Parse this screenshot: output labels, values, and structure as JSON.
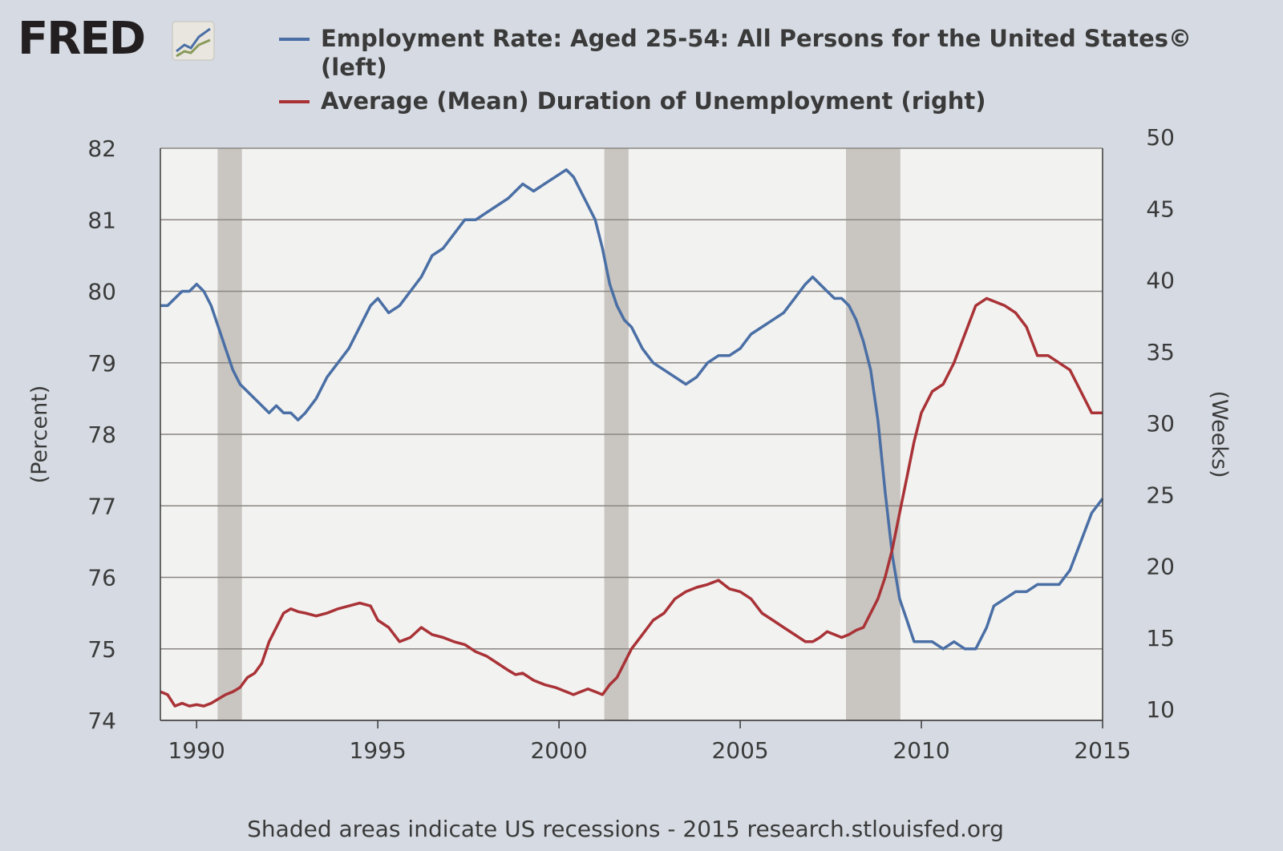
{
  "logo": {
    "text": "FRED",
    "icon": "fred-graph-icon"
  },
  "chart_data": {
    "type": "line",
    "title": "",
    "xlabel": "",
    "ylabel_left": "(Percent)",
    "ylabel_right": "(Weeks)",
    "xlim": [
      1989.0,
      2015.0
    ],
    "ylim_left": [
      74,
      82
    ],
    "ylim_right": [
      10,
      50
    ],
    "xticks": [
      1990,
      1995,
      2000,
      2005,
      2010,
      2015
    ],
    "yticks_left": [
      74,
      75,
      76,
      77,
      78,
      79,
      80,
      81,
      82
    ],
    "yticks_right": [
      10,
      15,
      20,
      25,
      30,
      35,
      40,
      45,
      50
    ],
    "grid": true,
    "recessions": [
      [
        1990.58,
        1991.25
      ],
      [
        2001.25,
        2001.92
      ],
      [
        2007.92,
        2009.42
      ]
    ],
    "series": [
      {
        "name": "Employment Rate: Aged 25-54: All Persons for the United States©",
        "axis_note": "(left)",
        "axis": "left",
        "color": "#4a6fa5",
        "x": [
          1989.0,
          1989.2,
          1989.4,
          1989.6,
          1989.8,
          1990.0,
          1990.2,
          1990.4,
          1990.6,
          1990.8,
          1991.0,
          1991.2,
          1991.4,
          1991.6,
          1991.8,
          1992.0,
          1992.2,
          1992.4,
          1992.6,
          1992.8,
          1993.0,
          1993.3,
          1993.6,
          1993.9,
          1994.2,
          1994.5,
          1994.8,
          1995.0,
          1995.3,
          1995.6,
          1995.9,
          1996.2,
          1996.5,
          1996.8,
          1997.1,
          1997.4,
          1997.7,
          1998.0,
          1998.3,
          1998.6,
          1998.8,
          1999.0,
          1999.3,
          1999.6,
          1999.9,
          2000.2,
          2000.4,
          2000.6,
          2000.8,
          2001.0,
          2001.2,
          2001.4,
          2001.6,
          2001.8,
          2002.0,
          2002.3,
          2002.6,
          2002.9,
          2003.2,
          2003.5,
          2003.8,
          2004.1,
          2004.4,
          2004.7,
          2005.0,
          2005.3,
          2005.6,
          2005.9,
          2006.2,
          2006.5,
          2006.8,
          2007.0,
          2007.2,
          2007.4,
          2007.6,
          2007.8,
          2008.0,
          2008.2,
          2008.4,
          2008.6,
          2008.8,
          2009.0,
          2009.2,
          2009.4,
          2009.6,
          2009.8,
          2010.0,
          2010.3,
          2010.6,
          2010.9,
          2011.2,
          2011.5,
          2011.8,
          2012.0,
          2012.3,
          2012.6,
          2012.9,
          2013.2,
          2013.5,
          2013.8,
          2014.1,
          2014.4,
          2014.7,
          2015.0
        ],
        "values": [
          79.8,
          79.8,
          79.9,
          80.0,
          80.0,
          80.1,
          80.0,
          79.8,
          79.5,
          79.2,
          78.9,
          78.7,
          78.6,
          78.5,
          78.4,
          78.3,
          78.4,
          78.3,
          78.3,
          78.2,
          78.3,
          78.5,
          78.8,
          79.0,
          79.2,
          79.5,
          79.8,
          79.9,
          79.7,
          79.8,
          80.0,
          80.2,
          80.5,
          80.6,
          80.8,
          81.0,
          81.0,
          81.1,
          81.2,
          81.3,
          81.4,
          81.5,
          81.4,
          81.5,
          81.6,
          81.7,
          81.6,
          81.4,
          81.2,
          81.0,
          80.6,
          80.1,
          79.8,
          79.6,
          79.5,
          79.2,
          79.0,
          78.9,
          78.8,
          78.7,
          78.8,
          79.0,
          79.1,
          79.1,
          79.2,
          79.4,
          79.5,
          79.6,
          79.7,
          79.9,
          80.1,
          80.2,
          80.1,
          80.0,
          79.9,
          79.9,
          79.8,
          79.6,
          79.3,
          78.9,
          78.2,
          77.2,
          76.3,
          75.7,
          75.4,
          75.1,
          75.1,
          75.1,
          75.0,
          75.1,
          75.0,
          75.0,
          75.3,
          75.6,
          75.7,
          75.8,
          75.8,
          75.9,
          75.9,
          75.9,
          76.1,
          76.5,
          76.9,
          77.1
        ]
      },
      {
        "name": "Average (Mean) Duration of Unemployment (right)",
        "axis": "right",
        "color": "#a93236",
        "x": [
          1989.0,
          1989.2,
          1989.4,
          1989.6,
          1989.8,
          1990.0,
          1990.2,
          1990.4,
          1990.6,
          1990.8,
          1991.0,
          1991.2,
          1991.4,
          1991.6,
          1991.8,
          1992.0,
          1992.2,
          1992.4,
          1992.6,
          1992.8,
          1993.0,
          1993.3,
          1993.6,
          1993.9,
          1994.2,
          1994.5,
          1994.8,
          1995.0,
          1995.3,
          1995.6,
          1995.9,
          1996.2,
          1996.5,
          1996.8,
          1997.1,
          1997.4,
          1997.7,
          1998.0,
          1998.3,
          1998.6,
          1998.8,
          1999.0,
          1999.3,
          1999.6,
          1999.9,
          2000.2,
          2000.4,
          2000.6,
          2000.8,
          2001.0,
          2001.2,
          2001.4,
          2001.6,
          2001.8,
          2002.0,
          2002.3,
          2002.6,
          2002.9,
          2003.2,
          2003.5,
          2003.8,
          2004.1,
          2004.4,
          2004.7,
          2005.0,
          2005.3,
          2005.6,
          2005.9,
          2006.2,
          2006.5,
          2006.8,
          2007.0,
          2007.2,
          2007.4,
          2007.6,
          2007.8,
          2008.0,
          2008.2,
          2008.4,
          2008.6,
          2008.8,
          2009.0,
          2009.2,
          2009.4,
          2009.6,
          2009.8,
          2010.0,
          2010.3,
          2010.6,
          2010.9,
          2011.2,
          2011.5,
          2011.8,
          2012.0,
          2012.3,
          2012.6,
          2012.9,
          2013.2,
          2013.5,
          2013.8,
          2014.1,
          2014.4,
          2014.7,
          2015.0
        ],
        "values": [
          12.0,
          11.8,
          11.0,
          11.2,
          11.0,
          11.1,
          11.0,
          11.2,
          11.5,
          11.8,
          12.0,
          12.3,
          13.0,
          13.3,
          14.0,
          15.5,
          16.5,
          17.5,
          17.8,
          17.6,
          17.5,
          17.3,
          17.5,
          17.8,
          18.0,
          18.2,
          18.0,
          17.0,
          16.5,
          15.5,
          15.8,
          16.5,
          16.0,
          15.8,
          15.5,
          15.3,
          14.8,
          14.5,
          14.0,
          13.5,
          13.2,
          13.3,
          12.8,
          12.5,
          12.3,
          12.0,
          11.8,
          12.0,
          12.2,
          12.0,
          11.8,
          12.5,
          13.0,
          14.0,
          15.0,
          16.0,
          17.0,
          17.5,
          18.5,
          19.0,
          19.3,
          19.5,
          19.8,
          19.2,
          19.0,
          18.5,
          17.5,
          17.0,
          16.5,
          16.0,
          15.5,
          15.5,
          15.8,
          16.2,
          16.0,
          15.8,
          16.0,
          16.3,
          16.5,
          17.5,
          18.5,
          20.0,
          22.0,
          24.5,
          27.0,
          29.5,
          31.5,
          33.0,
          33.5,
          35.0,
          37.0,
          39.0,
          39.5,
          39.3,
          39.0,
          38.5,
          37.5,
          35.5,
          35.5,
          35.0,
          34.5,
          33.0,
          31.5,
          31.5
        ]
      }
    ]
  },
  "footer": "Shaded areas indicate US recessions - 2015 research.stlouisfed.org"
}
